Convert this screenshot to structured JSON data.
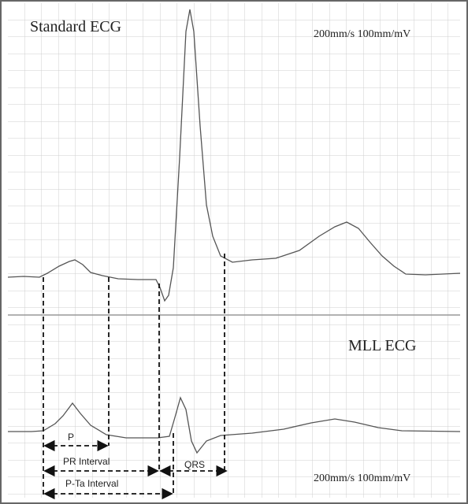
{
  "standard": {
    "title": "Standard ECG",
    "scale": "200mm/s 100mm/mV"
  },
  "mll": {
    "title": "MLL ECG",
    "scale": "200mm/s 100mm/mV"
  },
  "intervals": {
    "p": "P",
    "pr": "PR Interval",
    "pta": "P-Ta Interval",
    "qrs": "QRS"
  }
}
